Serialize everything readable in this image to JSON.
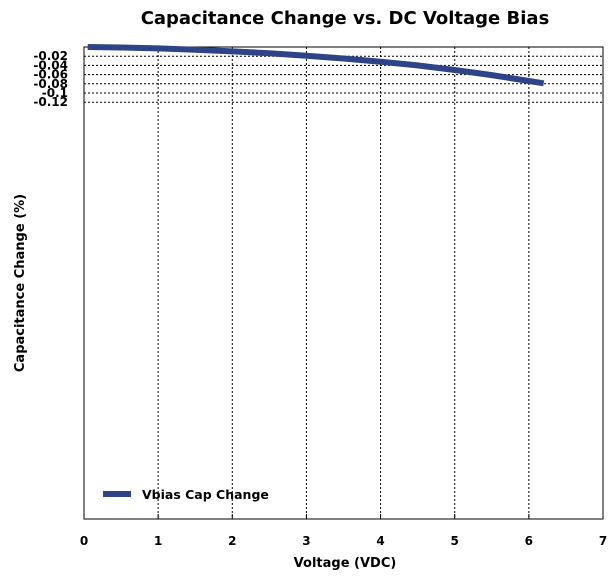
{
  "chart_data": {
    "type": "line",
    "title": "Capacitance Change vs. DC Voltage Bias",
    "xlabel": "Voltage (VDC)",
    "ylabel": "Capacitance Change (%)",
    "xlim": [
      0,
      7
    ],
    "ylim": [
      -0.12,
      0
    ],
    "x_ticks": [
      "0",
      "1",
      "2",
      "3",
      "4",
      "5",
      "6",
      "7"
    ],
    "y_ticks": [
      "-0.02",
      "-0.04",
      "-0.06",
      "-0.08",
      "-0.1",
      "-0.12"
    ],
    "grid": true,
    "legend_position": "bottom-left",
    "series": [
      {
        "name": "Vbias Cap Change",
        "color": "#2e4486",
        "x": [
          0.05,
          0.5,
          1.0,
          1.5,
          2.0,
          2.5,
          3.0,
          3.5,
          4.0,
          4.5,
          5.0,
          5.5,
          6.0,
          6.2
        ],
        "y": [
          0,
          -0.001,
          -0.003,
          -0.006,
          -0.0095,
          -0.0135,
          -0.019,
          -0.025,
          -0.032,
          -0.04,
          -0.05,
          -0.061,
          -0.074,
          -0.079
        ]
      }
    ]
  }
}
